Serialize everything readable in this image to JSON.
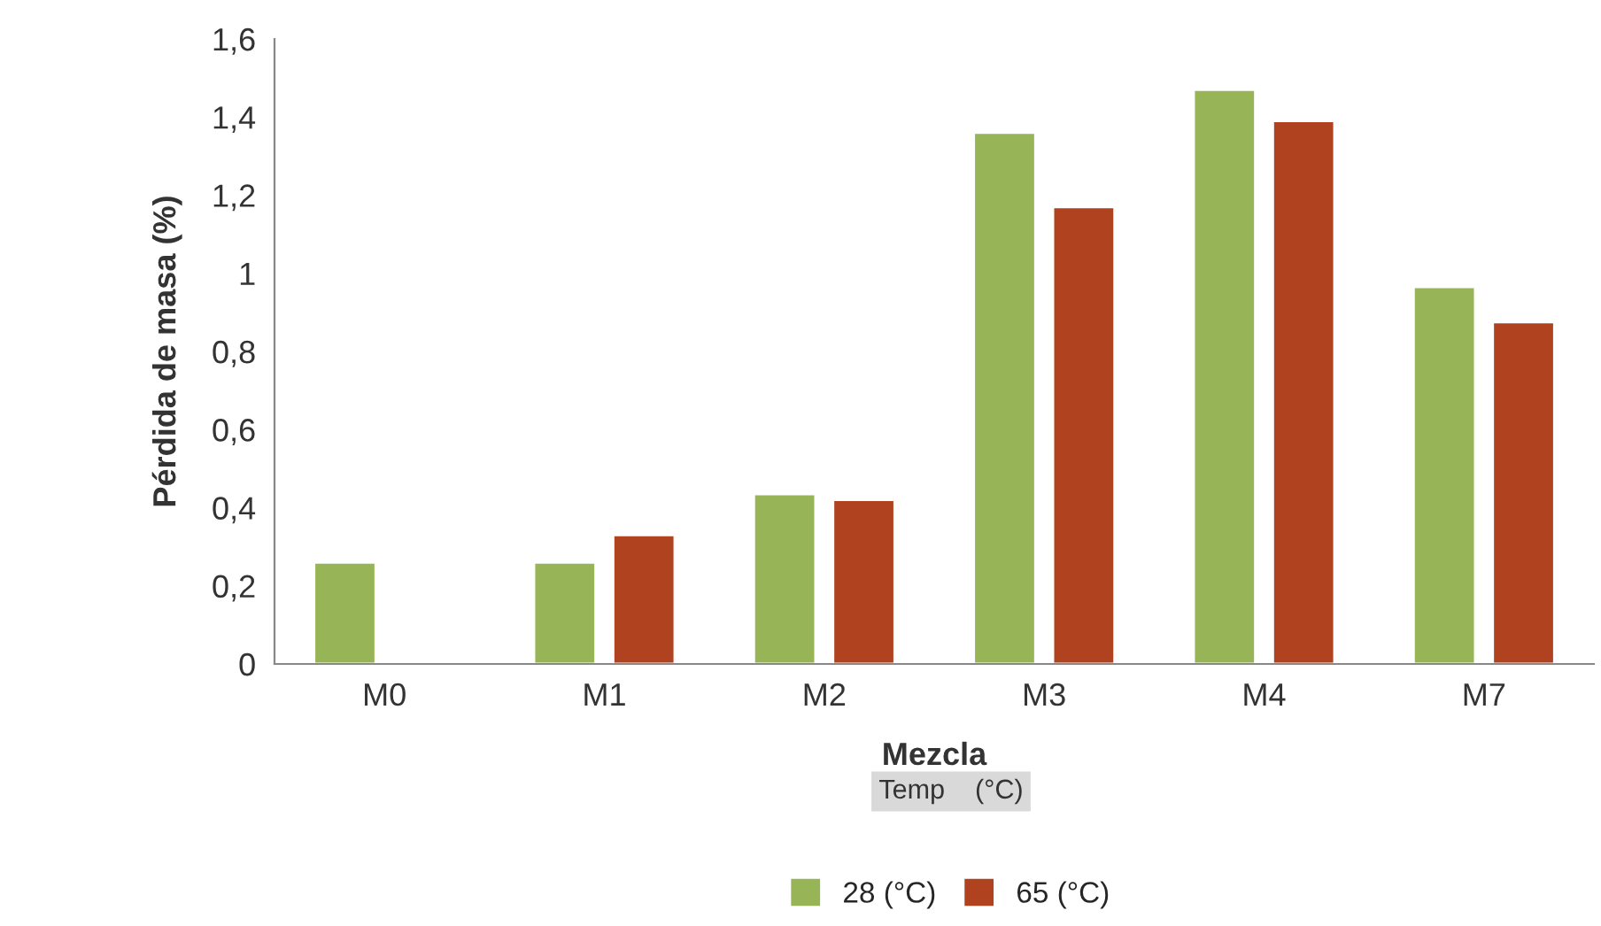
{
  "chart_data": {
    "type": "bar",
    "xlabel": "Mezcla",
    "ylabel": "Pérdida de masa (%)",
    "legend_title": "Temp    (°C)",
    "categories": [
      "M0",
      "M1",
      "M2",
      "M3",
      "M4",
      "M7"
    ],
    "series": [
      {
        "name": "28 (°C)",
        "color": "#97b556",
        "values": [
          0.26,
          0.26,
          0.435,
          1.36,
          1.47,
          0.965
        ]
      },
      {
        "name": "65 (°C)",
        "color": "#b0421f",
        "values": [
          null,
          0.33,
          0.42,
          1.17,
          1.39,
          0.875
        ]
      }
    ],
    "ylim": [
      0,
      1.6
    ],
    "yticks": [
      0,
      {
        "value": 0.2,
        "label": "0,2"
      },
      {
        "value": 0.4,
        "label": "0,4"
      },
      {
        "value": 0.6,
        "label": "0,6"
      },
      {
        "value": 0.8,
        "label": "0,8"
      },
      1,
      {
        "value": 1.2,
        "label": "1,2"
      },
      {
        "value": 1.4,
        "label": "1,4"
      },
      {
        "value": 1.6,
        "label": "1,6"
      }
    ],
    "grid": false,
    "legend": "bottom"
  }
}
